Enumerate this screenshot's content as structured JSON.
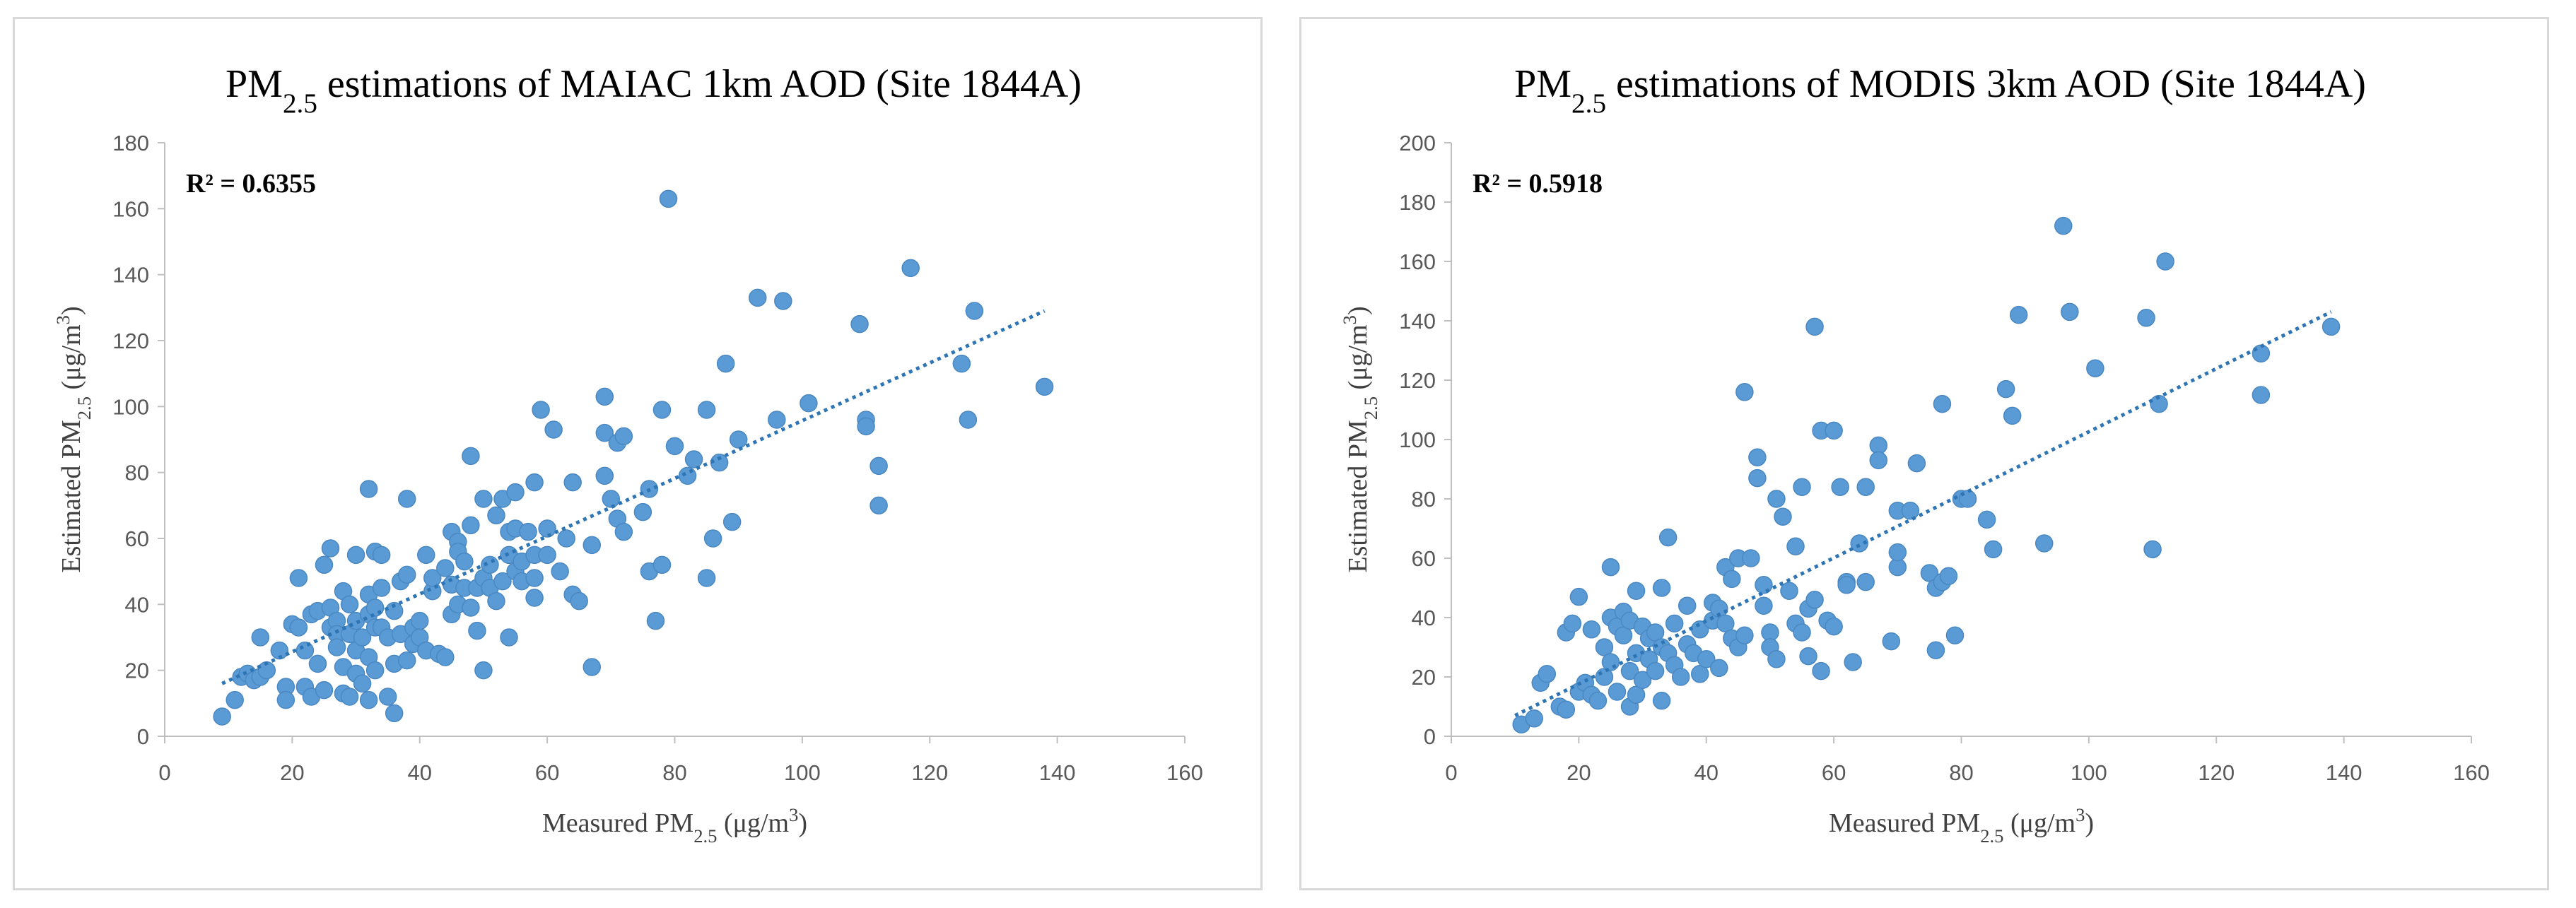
{
  "chart_data": [
    {
      "type": "scatter",
      "title": {
        "prefix": "PM",
        "sub": "2.5",
        "suffix": " estimations of MAIAC 1km AOD (Site 1844A)"
      },
      "xlabel": {
        "prefix": "Measured PM",
        "sub": "2.5",
        "suffix": " (μg/m",
        "sup": "3",
        "end": ")"
      },
      "ylabel": {
        "prefix": "Estimated PM",
        "sub": "2.5",
        "suffix": " (μg/m",
        "sup": "3",
        "end": ")"
      },
      "annotation": "R² = 0.6355",
      "xlim": [
        0,
        160
      ],
      "ylim": [
        0,
        180
      ],
      "xticks": [
        "0",
        "20",
        "40",
        "60",
        "80",
        "100",
        "120",
        "140",
        "160"
      ],
      "yticks": [
        "0",
        "20",
        "40",
        "60",
        "80",
        "100",
        "120",
        "140",
        "160",
        "180"
      ],
      "trendline": {
        "x": [
          9,
          138
        ],
        "y": [
          16,
          129
        ]
      },
      "points": [
        [
          9,
          6
        ],
        [
          11,
          11
        ],
        [
          12,
          18
        ],
        [
          13,
          19
        ],
        [
          14,
          17
        ],
        [
          15,
          30
        ],
        [
          15,
          18
        ],
        [
          16,
          20
        ],
        [
          18,
          26
        ],
        [
          19,
          15
        ],
        [
          19,
          11
        ],
        [
          20,
          34
        ],
        [
          21,
          33
        ],
        [
          21,
          48
        ],
        [
          22,
          26
        ],
        [
          22,
          15
        ],
        [
          23,
          37
        ],
        [
          23,
          12
        ],
        [
          24,
          38
        ],
        [
          24,
          22
        ],
        [
          25,
          14
        ],
        [
          25,
          52
        ],
        [
          26,
          33
        ],
        [
          26,
          57
        ],
        [
          26,
          39
        ],
        [
          27,
          35
        ],
        [
          27,
          31
        ],
        [
          27,
          27
        ],
        [
          28,
          44
        ],
        [
          28,
          21
        ],
        [
          28,
          13
        ],
        [
          29,
          12
        ],
        [
          29,
          40
        ],
        [
          29,
          31
        ],
        [
          30,
          55
        ],
        [
          30,
          35
        ],
        [
          30,
          26
        ],
        [
          30,
          19
        ],
        [
          31,
          16
        ],
        [
          31,
          30
        ],
        [
          32,
          75
        ],
        [
          32,
          43
        ],
        [
          32,
          37
        ],
        [
          32,
          24
        ],
        [
          32,
          11
        ],
        [
          33,
          56
        ],
        [
          33,
          39
        ],
        [
          33,
          33
        ],
        [
          33,
          20
        ],
        [
          34,
          55
        ],
        [
          34,
          45
        ],
        [
          34,
          33
        ],
        [
          35,
          30
        ],
        [
          35,
          12
        ],
        [
          36,
          7
        ],
        [
          36,
          38
        ],
        [
          36,
          22
        ],
        [
          37,
          47
        ],
        [
          37,
          31
        ],
        [
          38,
          49
        ],
        [
          38,
          72
        ],
        [
          38,
          23
        ],
        [
          39,
          33
        ],
        [
          39,
          28
        ],
        [
          40,
          35
        ],
        [
          40,
          30
        ],
        [
          41,
          26
        ],
        [
          41,
          55
        ],
        [
          42,
          44
        ],
        [
          42,
          48
        ],
        [
          43,
          25
        ],
        [
          44,
          24
        ],
        [
          44,
          51
        ],
        [
          45,
          62
        ],
        [
          45,
          46
        ],
        [
          45,
          37
        ],
        [
          46,
          59
        ],
        [
          46,
          56
        ],
        [
          46,
          40
        ],
        [
          47,
          53
        ],
        [
          47,
          45
        ],
        [
          48,
          85
        ],
        [
          48,
          64
        ],
        [
          48,
          39
        ],
        [
          49,
          45
        ],
        [
          49,
          32
        ],
        [
          50,
          72
        ],
        [
          50,
          20
        ],
        [
          50,
          48
        ],
        [
          51,
          52
        ],
        [
          51,
          45
        ],
        [
          52,
          67
        ],
        [
          52,
          41
        ],
        [
          53,
          72
        ],
        [
          53,
          47
        ],
        [
          54,
          62
        ],
        [
          54,
          55
        ],
        [
          54,
          30
        ],
        [
          55,
          74
        ],
        [
          55,
          63
        ],
        [
          55,
          50
        ],
        [
          56,
          53
        ],
        [
          56,
          47
        ],
        [
          57,
          62
        ],
        [
          58,
          77
        ],
        [
          58,
          55
        ],
        [
          58,
          48
        ],
        [
          58,
          42
        ],
        [
          59,
          99
        ],
        [
          60,
          63
        ],
        [
          60,
          55
        ],
        [
          61,
          93
        ],
        [
          62,
          50
        ],
        [
          63,
          60
        ],
        [
          64,
          77
        ],
        [
          64,
          43
        ],
        [
          65,
          41
        ],
        [
          67,
          58
        ],
        [
          67,
          21
        ],
        [
          69,
          103
        ],
        [
          69,
          92
        ],
        [
          69,
          79
        ],
        [
          70,
          72
        ],
        [
          71,
          66
        ],
        [
          71,
          89
        ],
        [
          72,
          62
        ],
        [
          72,
          91
        ],
        [
          75,
          68
        ],
        [
          76,
          75
        ],
        [
          76,
          50
        ],
        [
          77,
          35
        ],
        [
          78,
          52
        ],
        [
          78,
          99
        ],
        [
          79,
          163
        ],
        [
          80,
          88
        ],
        [
          82,
          79
        ],
        [
          83,
          84
        ],
        [
          85,
          99
        ],
        [
          85,
          48
        ],
        [
          86,
          60
        ],
        [
          87,
          83
        ],
        [
          88,
          113
        ],
        [
          89,
          65
        ],
        [
          90,
          90
        ],
        [
          93,
          133
        ],
        [
          96,
          96
        ],
        [
          97,
          132
        ],
        [
          101,
          101
        ],
        [
          109,
          125
        ],
        [
          110,
          96
        ],
        [
          110,
          94
        ],
        [
          112,
          82
        ],
        [
          112,
          70
        ],
        [
          117,
          142
        ],
        [
          125,
          113
        ],
        [
          126,
          96
        ],
        [
          127,
          129
        ],
        [
          138,
          106
        ]
      ]
    },
    {
      "type": "scatter",
      "title": {
        "prefix": "PM",
        "sub": "2.5",
        "suffix": " estimations of MODIS 3km AOD (Site 1844A)"
      },
      "xlabel": {
        "prefix": "Measured PM",
        "sub": "2.5",
        "suffix": " (μg/m",
        "sup": "3",
        "end": ")"
      },
      "ylabel": {
        "prefix": "Estimated PM",
        "sub": "2.5",
        "suffix": " (μg/m",
        "sup": "3",
        "end": ")"
      },
      "annotation": "R² = 0.5918",
      "xlim": [
        0,
        160
      ],
      "ylim": [
        0,
        200
      ],
      "xticks": [
        "0",
        "20",
        "40",
        "60",
        "80",
        "100",
        "120",
        "140",
        "160"
      ],
      "yticks": [
        "0",
        "20",
        "40",
        "60",
        "80",
        "100",
        "120",
        "140",
        "160",
        "180",
        "200"
      ],
      "trendline": {
        "x": [
          10,
          138
        ],
        "y": [
          7,
          143
        ]
      },
      "points": [
        [
          11,
          4
        ],
        [
          13,
          6
        ],
        [
          14,
          18
        ],
        [
          15,
          21
        ],
        [
          17,
          10
        ],
        [
          18,
          9
        ],
        [
          18,
          35
        ],
        [
          19,
          38
        ],
        [
          20,
          15
        ],
        [
          20,
          47
        ],
        [
          21,
          18
        ],
        [
          22,
          36
        ],
        [
          22,
          14
        ],
        [
          23,
          12
        ],
        [
          24,
          30
        ],
        [
          24,
          20
        ],
        [
          25,
          57
        ],
        [
          25,
          40
        ],
        [
          25,
          25
        ],
        [
          26,
          37
        ],
        [
          26,
          15
        ],
        [
          27,
          42
        ],
        [
          27,
          34
        ],
        [
          28,
          39
        ],
        [
          28,
          22
        ],
        [
          28,
          10
        ],
        [
          29,
          49
        ],
        [
          29,
          28
        ],
        [
          29,
          14
        ],
        [
          30,
          37
        ],
        [
          30,
          19
        ],
        [
          31,
          26
        ],
        [
          31,
          33
        ],
        [
          32,
          35
        ],
        [
          32,
          22
        ],
        [
          33,
          50
        ],
        [
          33,
          30
        ],
        [
          33,
          12
        ],
        [
          34,
          67
        ],
        [
          34,
          28
        ],
        [
          35,
          38
        ],
        [
          35,
          24
        ],
        [
          36,
          20
        ],
        [
          37,
          44
        ],
        [
          37,
          31
        ],
        [
          38,
          28
        ],
        [
          39,
          36
        ],
        [
          39,
          21
        ],
        [
          40,
          26
        ],
        [
          41,
          45
        ],
        [
          41,
          39
        ],
        [
          42,
          23
        ],
        [
          42,
          43
        ],
        [
          43,
          57
        ],
        [
          43,
          38
        ],
        [
          44,
          53
        ],
        [
          44,
          33
        ],
        [
          45,
          30
        ],
        [
          45,
          60
        ],
        [
          46,
          116
        ],
        [
          46,
          34
        ],
        [
          47,
          60
        ],
        [
          48,
          94
        ],
        [
          48,
          87
        ],
        [
          49,
          51
        ],
        [
          49,
          44
        ],
        [
          50,
          35
        ],
        [
          50,
          30
        ],
        [
          51,
          80
        ],
        [
          51,
          26
        ],
        [
          52,
          74
        ],
        [
          53,
          49
        ],
        [
          54,
          64
        ],
        [
          54,
          38
        ],
        [
          55,
          84
        ],
        [
          55,
          35
        ],
        [
          56,
          43
        ],
        [
          56,
          27
        ],
        [
          57,
          138
        ],
        [
          57,
          46
        ],
        [
          58,
          103
        ],
        [
          58,
          22
        ],
        [
          59,
          39
        ],
        [
          60,
          37
        ],
        [
          60,
          103
        ],
        [
          61,
          84
        ],
        [
          62,
          52
        ],
        [
          62,
          51
        ],
        [
          63,
          25
        ],
        [
          64,
          65
        ],
        [
          65,
          84
        ],
        [
          65,
          52
        ],
        [
          67,
          98
        ],
        [
          67,
          93
        ],
        [
          69,
          32
        ],
        [
          70,
          57
        ],
        [
          70,
          76
        ],
        [
          70,
          62
        ],
        [
          72,
          76
        ],
        [
          73,
          92
        ],
        [
          75,
          55
        ],
        [
          76,
          50
        ],
        [
          76,
          29
        ],
        [
          77,
          52
        ],
        [
          77,
          112
        ],
        [
          78,
          54
        ],
        [
          79,
          34
        ],
        [
          80,
          80
        ],
        [
          81,
          80
        ],
        [
          84,
          73
        ],
        [
          85,
          63
        ],
        [
          87,
          117
        ],
        [
          88,
          108
        ],
        [
          89,
          142
        ],
        [
          93,
          65
        ],
        [
          96,
          172
        ],
        [
          97,
          143
        ],
        [
          101,
          124
        ],
        [
          109,
          141
        ],
        [
          110,
          63
        ],
        [
          111,
          112
        ],
        [
          112,
          160
        ],
        [
          127,
          115
        ],
        [
          127,
          129
        ],
        [
          138,
          138
        ]
      ]
    }
  ]
}
